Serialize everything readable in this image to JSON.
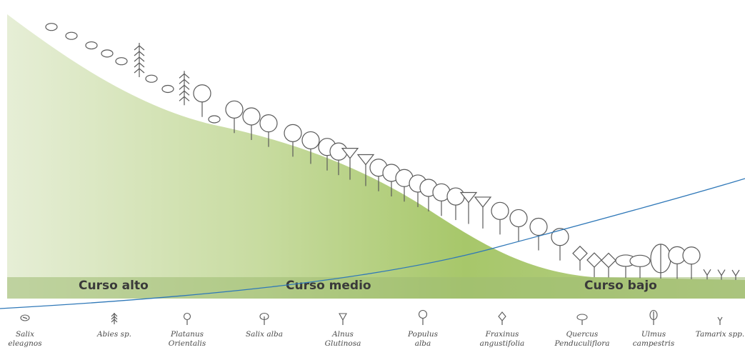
{
  "zones": [
    {
      "id": "alto",
      "label": "Curso alto"
    },
    {
      "id": "medio",
      "label": "Curso medio"
    },
    {
      "id": "bajo",
      "label": "Curso bajo"
    }
  ],
  "legend": [
    {
      "line1": "Salix",
      "line2": "eleagnos",
      "icon": "salix-eleagnos-icon"
    },
    {
      "line1": "Abies sp.",
      "line2": "",
      "icon": "abies-icon"
    },
    {
      "line1": "Platanus",
      "line2": "Orientalis",
      "icon": "platanus-icon"
    },
    {
      "line1": "Salix alba",
      "line2": "",
      "icon": "salix-alba-icon"
    },
    {
      "line1": "Alnus",
      "line2": "Glutinosa",
      "icon": "alnus-icon"
    },
    {
      "line1": "Populus",
      "line2": "alba",
      "icon": "populus-icon"
    },
    {
      "line1": "Fraxinus",
      "line2": "angustifolia",
      "icon": "fraxinus-icon"
    },
    {
      "line1": "Quercus",
      "line2": "Penduculiflora",
      "icon": "quercus-icon"
    },
    {
      "line1": "Ulmus",
      "line2": "campestris",
      "icon": "ulmus-icon"
    },
    {
      "line1": "Tamarix spp.",
      "line2": "",
      "icon": "tamarix-icon"
    }
  ],
  "colors": {
    "hill_light": "#dce8c6",
    "hill_dark": "#a9c672",
    "ground_band": "#98b56a",
    "blue_curve": "#2f78b8"
  }
}
